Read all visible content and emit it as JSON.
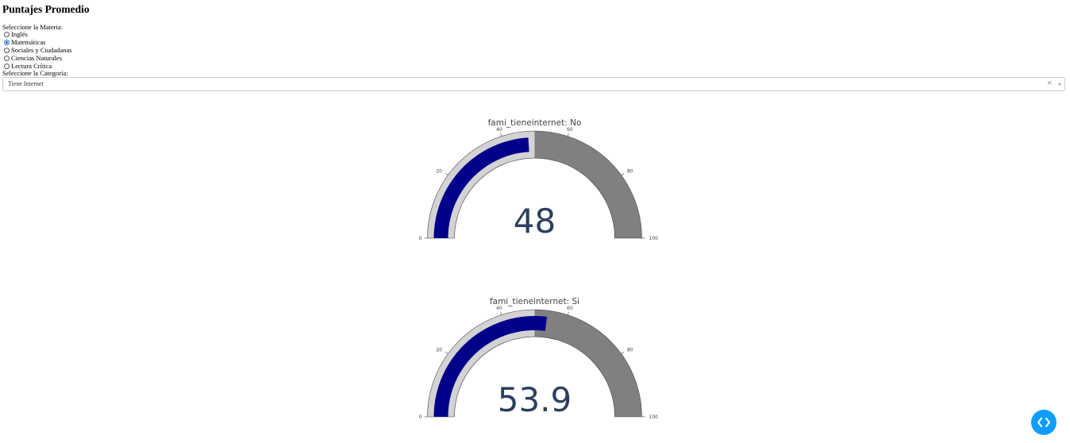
{
  "page": {
    "title": "Puntajes Promedio"
  },
  "materia": {
    "label": "Seleccione la Materia:",
    "options": [
      "Inglés",
      "Matemáticas",
      "Sociales y Ciudadanas",
      "Ciencias Naturales",
      "Lectura Crítica"
    ],
    "selected_index": 1
  },
  "categoria": {
    "label": "Seleccione la Categoría:",
    "value": "Tiene Internet",
    "clear_symbol": "×"
  },
  "colors": {
    "bar": "#00008b",
    "band_low": "#d3d3d3",
    "band_high": "#808080",
    "number": "#2a3f5f",
    "fab": "#119dff"
  },
  "gauges": [
    {
      "title": "fami_tieneinternet: No",
      "value": 48,
      "display": "48",
      "range": [
        0,
        100
      ],
      "ticks": [
        "0",
        "20",
        "40",
        "60",
        "80",
        "100"
      ],
      "step_split": 50
    },
    {
      "title": "fami_tieneinternet: Si",
      "value": 53.9,
      "display": "53.9",
      "range": [
        0,
        100
      ],
      "ticks": [
        "0",
        "20",
        "40",
        "60",
        "80",
        "100"
      ],
      "step_split": 50
    }
  ],
  "fab_icon": "code-chevrons-icon"
}
